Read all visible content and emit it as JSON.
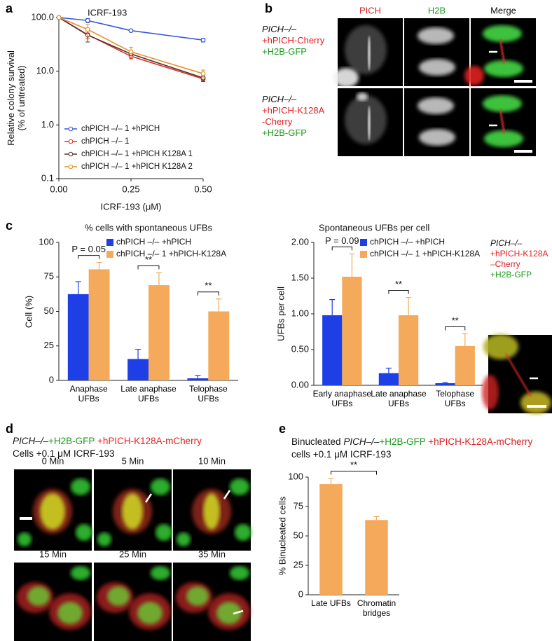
{
  "panel_labels": [
    "a",
    "b",
    "c",
    "d",
    "e"
  ],
  "chart_data": [
    {
      "type": "line",
      "title": "ICRF-193",
      "xlabel": "ICRF-193 (μM)",
      "ylabel": [
        "Relative colony survival",
        "(% of untreated)"
      ],
      "log_y": true,
      "x": [
        0,
        0.1,
        0.25,
        0.5
      ],
      "xlim": [
        0,
        0.5
      ],
      "xticks": [
        {
          "value": 0,
          "label": "0.00"
        },
        0.25,
        {
          "value": 0.5,
          "label": "0.50"
        }
      ],
      "ylim": [
        0.1,
        100
      ],
      "yticks": [
        0.1,
        {
          "value": 1,
          "label": "1.0"
        },
        {
          "value": 10,
          "label": "10.0"
        },
        {
          "value": 100,
          "label": "100.0"
        }
      ],
      "series": [
        {
          "name": "chPICH –/– 1 +hPICH",
          "color": "#3355dd",
          "values": [
            100,
            88,
            57,
            38
          ],
          "errors": [
            0,
            8,
            3,
            3
          ]
        },
        {
          "name": "chPICH –/– 1",
          "color": "#dd3322",
          "values": [
            100,
            48,
            19,
            7.2
          ],
          "errors": [
            0,
            8,
            2,
            0.8
          ]
        },
        {
          "name": "chPICH –/– 1 +hPICH K128A 1",
          "color": "#5a3030",
          "values": [
            100,
            47,
            21,
            7.5
          ],
          "errors": [
            0,
            12,
            3,
            1
          ]
        },
        {
          "name": "chPICH –/– 1 +hPICH K128A 2",
          "color": "#e8922a",
          "values": [
            100,
            60,
            23,
            9
          ],
          "errors": [
            0,
            15,
            5,
            1.5
          ]
        }
      ]
    },
    {
      "type": "bar",
      "title": "% cells with spontaneous UFBs",
      "ylabel": "Cell (%)",
      "categories": [
        "Anaphase UFBs",
        "Late anaphase UFBs",
        "Telophase UFBs"
      ],
      "ylim": [
        0,
        100
      ],
      "yticks": [
        0,
        25,
        50,
        75,
        100
      ],
      "series": [
        {
          "name": "chPICH –/– +hPICH",
          "color": "#1f3fe6",
          "values": [
            62.5,
            15.5,
            1.5
          ],
          "errors": [
            9,
            7,
            2
          ]
        },
        {
          "name": "chPICH –/– 1 +hPICH-K128A",
          "color": "#f5a95a",
          "values": [
            80.5,
            69,
            50
          ],
          "errors": [
            5,
            9,
            9
          ]
        }
      ],
      "annotations": [
        "P = 0.05",
        "**",
        "**"
      ]
    },
    {
      "type": "bar",
      "title": "Spontaneous UFBs per cell",
      "ylabel": "UFBs per cell",
      "categories": [
        "Early anaphase UFBs",
        "Late anaphase UFBs",
        "Telophase UFBs"
      ],
      "ylim": [
        0,
        2
      ],
      "yticks": [
        {
          "value": 0,
          "label": "0.00"
        },
        {
          "value": 0.5,
          "label": "0.50"
        },
        {
          "value": 1,
          "label": "1.00"
        },
        {
          "value": 1.5,
          "label": "1.50"
        },
        {
          "value": 2,
          "label": "2.00"
        }
      ],
      "series": [
        {
          "name": "chPICH –/– +hPICH",
          "color": "#1f3fe6",
          "values": [
            0.98,
            0.17,
            0.03
          ],
          "errors": [
            0.22,
            0.07,
            0.01
          ]
        },
        {
          "name": "chPICH –/– 1 +hPICH-K128A",
          "color": "#f5a95a",
          "values": [
            1.52,
            0.98,
            0.55
          ],
          "errors": [
            0.32,
            0.25,
            0.17
          ]
        }
      ],
      "annotations": [
        "P = 0.09",
        "**",
        "**"
      ]
    },
    {
      "type": "bar",
      "ylabel": "% Binucleated cells",
      "categories": [
        "Late UFBs",
        "Chromatin bridges"
      ],
      "ylim": [
        0,
        100
      ],
      "yticks": [
        0,
        25,
        50,
        75,
        100
      ],
      "color": "#f5a95a",
      "values": [
        94,
        63.5
      ],
      "errors": [
        5,
        3
      ],
      "annotations": [
        "**"
      ]
    }
  ],
  "panel_b": {
    "columns": [
      "PICH",
      "H2B",
      "Merge"
    ],
    "rows": [
      [
        "PICH–/–",
        "+hPICH-Cherry",
        "+H2B-GFP"
      ],
      [
        "PICH–/–",
        "+hPICH-K128A",
        "-Cherry",
        "+H2B-GFP"
      ]
    ]
  },
  "panel_c_inset": {
    "label": [
      "PICH–/–",
      "+hPICH-K128A",
      "–Cherry",
      "+H2B-GFP"
    ]
  },
  "panel_d": {
    "header": [
      "PICH–/–",
      "+H2B-GFP",
      "+hPICH-K128A-mCherry"
    ],
    "subheader": "Cells +0.1 μM ICRF-193",
    "timepoints": [
      "0 Min",
      "5 Min",
      "10 Min",
      "15 Min",
      "25 Min",
      "35 Min"
    ]
  },
  "panel_e": {
    "caption": [
      "Binucleated",
      "PICH–/–",
      "+H2B-GFP",
      "+hPICH-K128A-mCherry",
      "cells +0.1 μM ICRF-193"
    ]
  }
}
